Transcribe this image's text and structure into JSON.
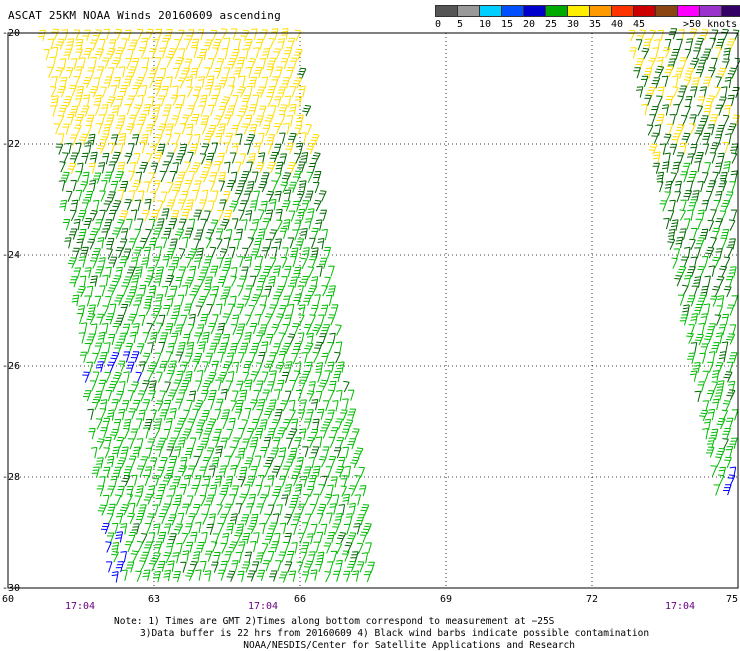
{
  "title": "ASCAT 25KM NOAA Winds 20160609 ascending",
  "legend": {
    "swatch_colors": [
      "#555555",
      "#999999",
      "#00cfff",
      "#0050ff",
      "#0000cc",
      "#00aa00",
      "#ffee00",
      "#ff9900",
      "#ff3300",
      "#cc0000",
      "#8b4513",
      "#ff00ff",
      "#9933cc",
      "#330066"
    ],
    "tick_labels": [
      "0",
      "5",
      "10",
      "15",
      "20",
      "25",
      "30",
      "35",
      "40",
      "45",
      ">50 knots"
    ]
  },
  "map": {
    "lat_labels": [
      "-20",
      "-22",
      "-24",
      "-26",
      "-28",
      "-30"
    ],
    "lon_labels": [
      "60",
      "63",
      "66",
      "69",
      "72",
      "75"
    ],
    "time_labels": [
      "17:04",
      "17:04",
      "17:04"
    ],
    "wind_colors": {
      "yellow": "#ffdd00",
      "dark_green": "#006600",
      "green": "#00bb00",
      "blue": "#0000ff"
    }
  },
  "notes": {
    "line1": "Note: 1) Times are GMT 2)Times along bottom correspond to measurement at −25S",
    "line2": "3)Data buffer is 22 hrs from 20160609 4) Black wind barbs indicate possible contamination",
    "credit": "NOAA/NESDIS/Center for Satellite Applications and Research"
  }
}
